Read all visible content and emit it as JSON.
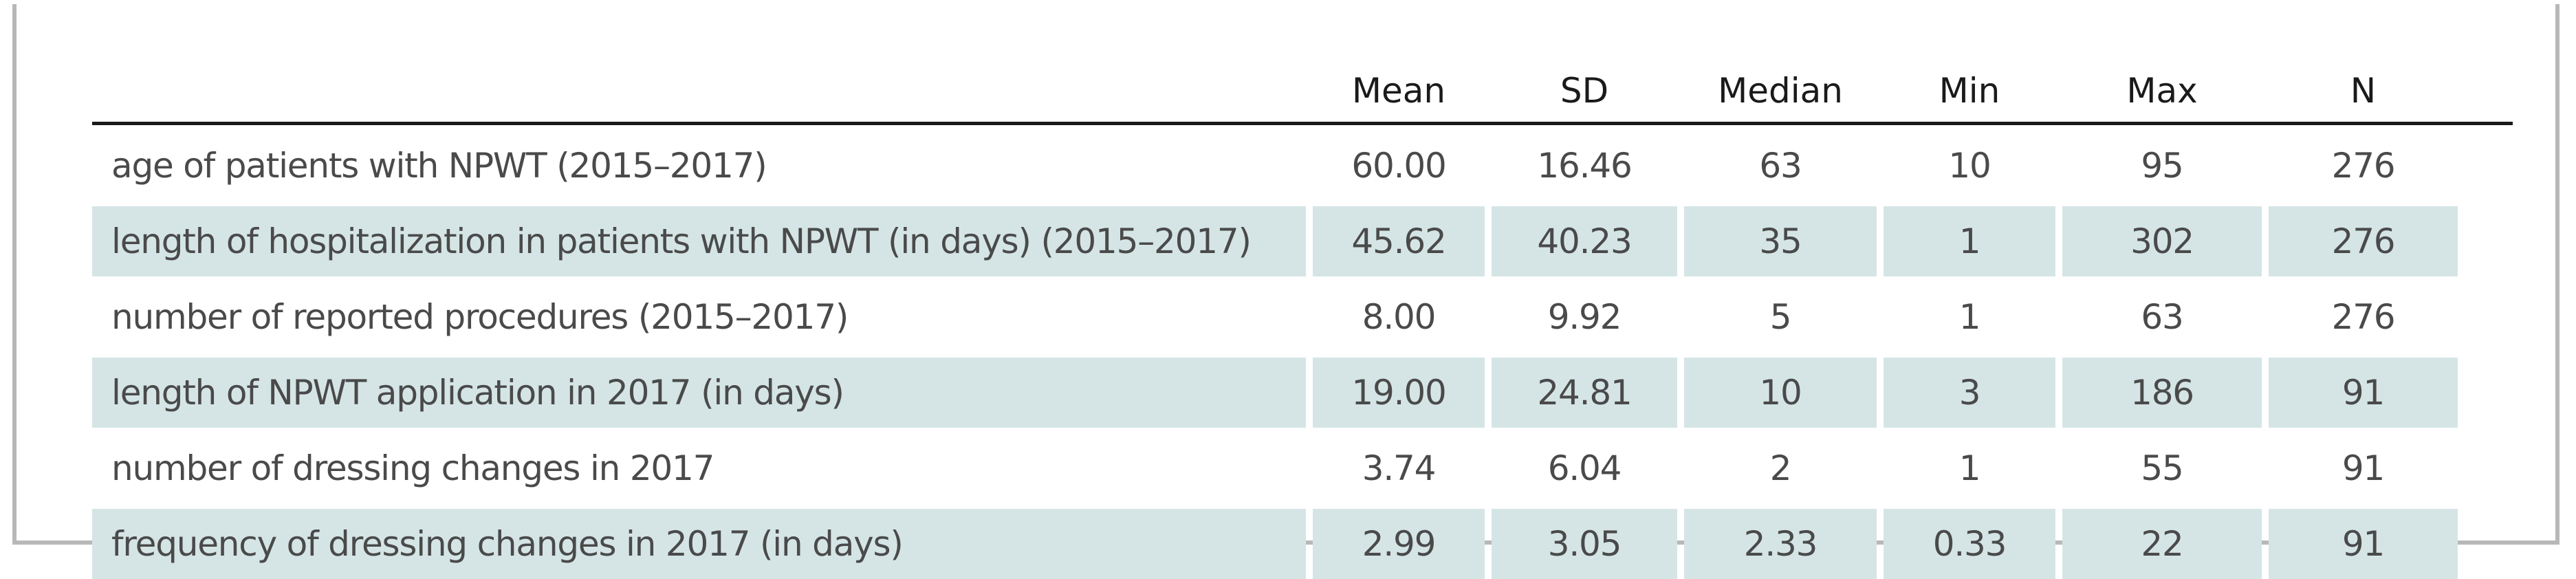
{
  "table": {
    "columns": [
      "",
      "Mean",
      "SD",
      "Median",
      "Min",
      "Max",
      "N"
    ],
    "rows": [
      {
        "label": "age of patients with NPWT (2015–2017)",
        "mean": "60.00",
        "sd": "16.46",
        "median": "63",
        "min": "10",
        "max": "95",
        "n": "276"
      },
      {
        "label": "length of hospitalization in patients with NPWT (in days) (2015–2017)",
        "mean": "45.62",
        "sd": "40.23",
        "median": "35",
        "min": "1",
        "max": "302",
        "n": "276"
      },
      {
        "label": "number of reported procedures (2015–2017)",
        "mean": "8.00",
        "sd": "9.92",
        "median": "5",
        "min": "1",
        "max": "63",
        "n": "276"
      },
      {
        "label": "length of NPWT application in 2017 (in days)",
        "mean": "19.00",
        "sd": "24.81",
        "median": "10",
        "min": "3",
        "max": "186",
        "n": "91"
      },
      {
        "label": "number of dressing changes in 2017",
        "mean": "3.74",
        "sd": "6.04",
        "median": "2",
        "min": "1",
        "max": "55",
        "n": "91"
      },
      {
        "label": "frequency of dressing changes in 2017 (in days)",
        "mean": "2.99",
        "sd": "3.05",
        "median": "2.33",
        "min": "0.33",
        "max": "22",
        "n": "91"
      }
    ]
  },
  "colors": {
    "stripe": "#d5e5e6",
    "text": "#4a4a4a",
    "header_rule": "#1a1a1a",
    "frame": "#b8b8b8"
  }
}
